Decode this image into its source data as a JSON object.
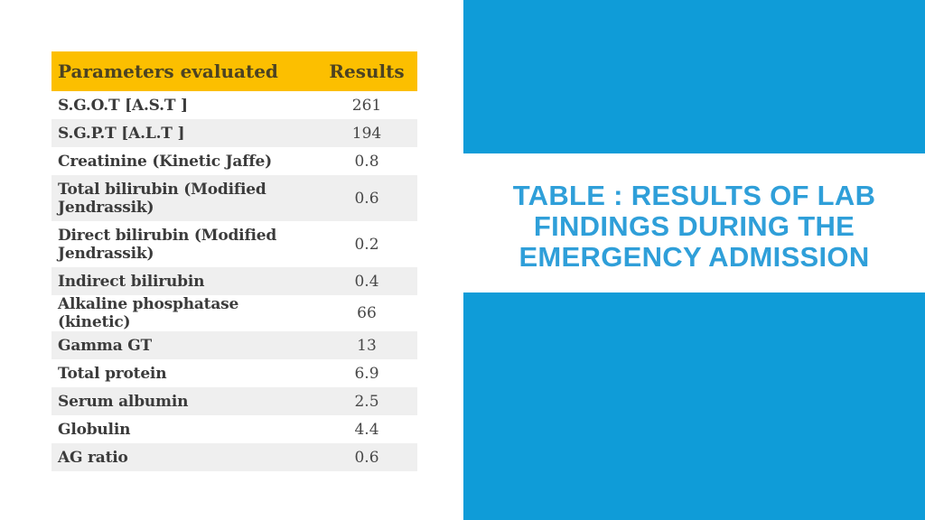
{
  "slide": {
    "title": "TABLE : RESULTS OF LAB FINDINGS DURING THE EMERGENCY ADMISSION",
    "colors": {
      "accent_blue": "#0f9cd8",
      "title_blue": "#2f9fd9",
      "header_yellow": "#fcbf00",
      "row_stripe_gray": "#efefef",
      "body_text": "#3b3b3b"
    }
  },
  "table": {
    "columns": [
      "Parameters evaluated",
      "Results"
    ],
    "rows": [
      {
        "param": "S.G.O.T [A.S.T ]",
        "value": "261"
      },
      {
        "param": "S.G.P.T [A.L.T ]",
        "value": "194"
      },
      {
        "param": "Creatinine (Kinetic Jaffe)",
        "value": "0.8"
      },
      {
        "param": "Total bilirubin (Modified Jendrassik)",
        "value": "0.6"
      },
      {
        "param": "Direct bilirubin (Modified Jendrassik)",
        "value": "0.2"
      },
      {
        "param": "Indirect bilirubin",
        "value": "0.4"
      },
      {
        "param": "Alkaline phosphatase (kinetic)",
        "value": "66"
      },
      {
        "param": "Gamma GT",
        "value": "13"
      },
      {
        "param": "Total protein",
        "value": "6.9"
      },
      {
        "param": "Serum albumin",
        "value": "2.5"
      },
      {
        "param": "Globulin",
        "value": "4.4"
      },
      {
        "param": "AG ratio",
        "value": "0.6"
      }
    ]
  }
}
